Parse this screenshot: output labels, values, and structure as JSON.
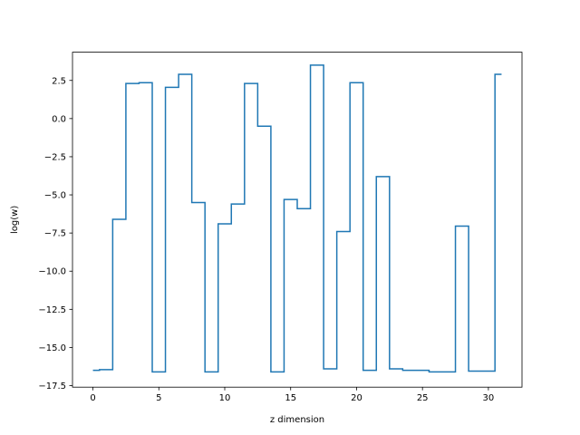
{
  "chart_data": {
    "type": "line",
    "drawstyle": "steps-mid",
    "xlabel": "z dimension",
    "ylabel": "log(w)",
    "xlim": [
      -1.55,
      32.55
    ],
    "ylim": [
      -17.6,
      4.35
    ],
    "xticks": [
      0,
      5,
      10,
      15,
      20,
      25,
      30
    ],
    "xtick_labels": [
      "0",
      "5",
      "10",
      "15",
      "20",
      "25",
      "30"
    ],
    "yticks": [
      -17.5,
      -15.0,
      -12.5,
      -10.0,
      -7.5,
      -5.0,
      -2.5,
      0.0,
      2.5
    ],
    "ytick_labels": [
      "−17.5",
      "−15.0",
      "−12.5",
      "−10.0",
      "−7.5",
      "−5.0",
      "−2.5",
      "0.0",
      "2.5"
    ],
    "grid": false,
    "color": "#1f77b4",
    "series": [
      {
        "x": [
          0,
          1,
          2,
          3,
          4,
          5,
          6,
          7,
          8,
          9,
          10,
          11,
          12,
          13,
          14,
          15,
          16,
          17,
          18,
          19,
          20,
          21,
          22,
          23,
          24,
          25,
          26,
          27,
          28,
          29,
          30,
          31
        ],
        "y": [
          -16.5,
          -16.45,
          -6.6,
          2.3,
          2.35,
          -16.6,
          2.05,
          2.9,
          -5.5,
          -16.6,
          -6.9,
          -5.6,
          2.3,
          -0.5,
          -16.6,
          -5.3,
          -5.9,
          3.5,
          -16.4,
          -7.4,
          2.35,
          -16.5,
          -3.8,
          -16.4,
          -16.5,
          -16.5,
          -16.6,
          -16.6,
          -7.05,
          -16.55,
          -16.55,
          2.9
        ]
      }
    ]
  }
}
